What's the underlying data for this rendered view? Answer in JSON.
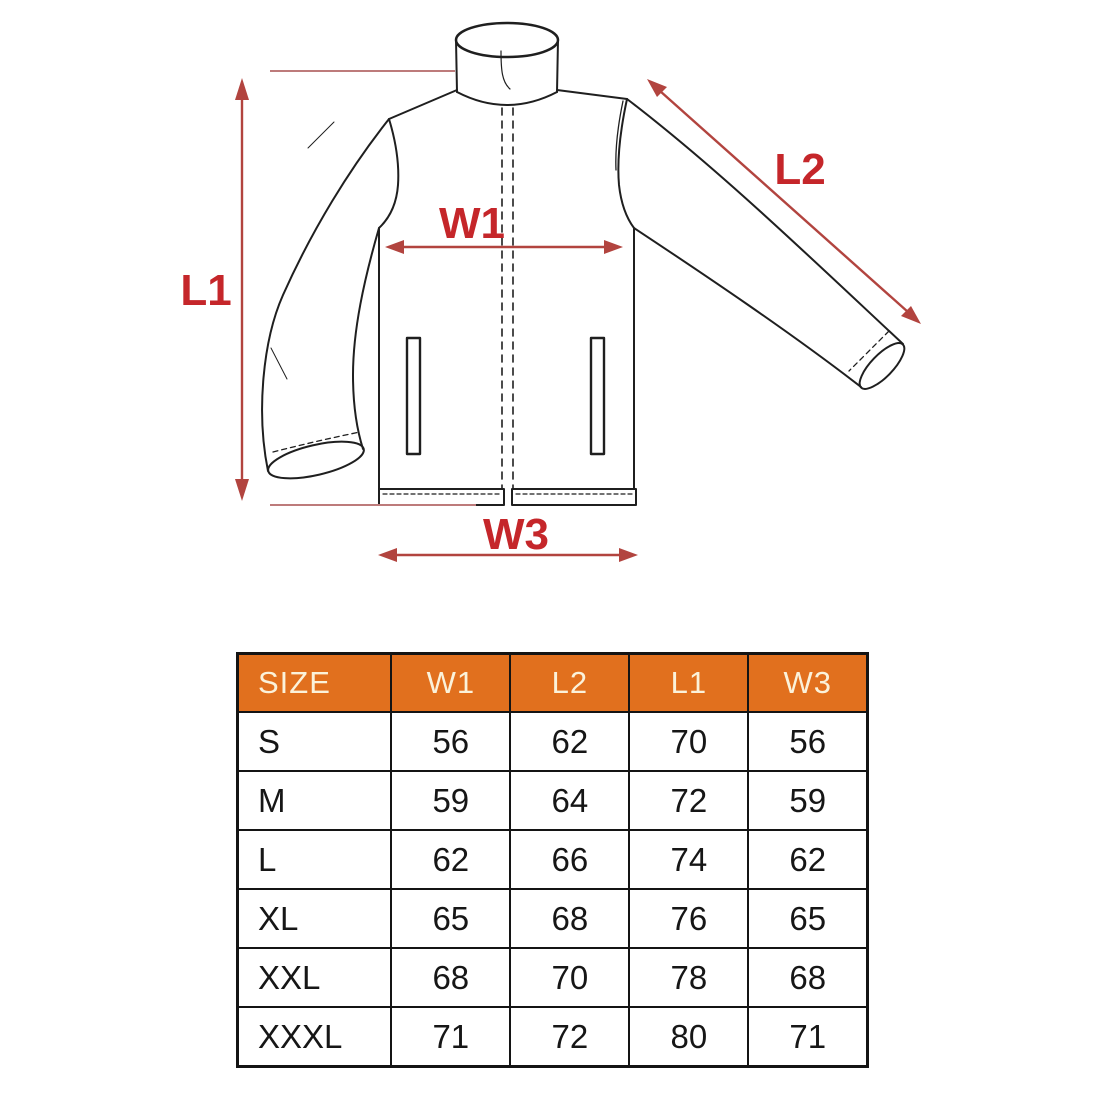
{
  "diagram": {
    "labels": {
      "l1": "L1",
      "l2": "L2",
      "w1": "W1",
      "w3": "W3"
    },
    "colors": {
      "label_red": "#c5262a",
      "arrow_red": "#b2443f",
      "leader_red": "#bd7b7b",
      "line_black": "#1f1f1f",
      "table_header_bg": "#e1701e",
      "table_header_text": "#fbf2da",
      "table_border": "#141414"
    }
  },
  "table": {
    "columns": [
      "SIZE",
      "W1",
      "L2",
      "L1",
      "W3"
    ],
    "rows": [
      {
        "size": "S",
        "values": [
          56,
          62,
          70,
          56
        ]
      },
      {
        "size": "M",
        "values": [
          59,
          64,
          72,
          59
        ]
      },
      {
        "size": "L",
        "values": [
          62,
          66,
          74,
          62
        ]
      },
      {
        "size": "XL",
        "values": [
          65,
          68,
          76,
          65
        ]
      },
      {
        "size": "XXL",
        "values": [
          68,
          70,
          78,
          68
        ]
      },
      {
        "size": "XXXL",
        "values": [
          71,
          72,
          80,
          71
        ]
      }
    ]
  }
}
